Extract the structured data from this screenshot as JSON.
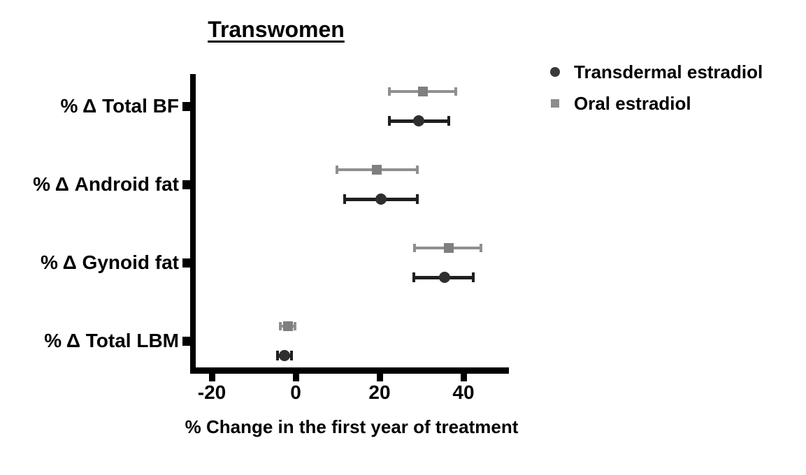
{
  "chart_data": {
    "type": "scatter",
    "subtype": "forest-plot-horizontal-error-bars",
    "title": "Transwomen",
    "xlabel": "% Change in the first year of treatment",
    "categories": [
      "% Δ Total BF",
      "% Δ Android fat",
      "% Δ Gynoid fat",
      "% Δ Total LBM"
    ],
    "x_ticks": [
      -20,
      0,
      20,
      40
    ],
    "xlim": [
      -25,
      51
    ],
    "grid": false,
    "legend_position": "upper-right-outside",
    "series": [
      {
        "name": "Transdermal estradiol",
        "marker": "circle",
        "color": "#2e2e2e",
        "bar_color": "#1f1f1f",
        "row": "bottom",
        "values": [
          29.3,
          20.3,
          35.5,
          -2.7
        ],
        "ci_low": [
          22.3,
          11.7,
          28.2,
          -4.3
        ],
        "ci_high": [
          36.5,
          29.0,
          42.3,
          -1.0
        ]
      },
      {
        "name": "Oral estradiol",
        "marker": "square",
        "color": "#7f7f7f",
        "bar_color": "#8f8f8f",
        "row": "top",
        "values": [
          30.3,
          19.3,
          36.5,
          -1.9
        ],
        "ci_low": [
          22.3,
          9.8,
          28.3,
          -3.7
        ],
        "ci_high": [
          38.2,
          29.0,
          44.2,
          -0.2
        ]
      }
    ]
  },
  "legend": {
    "items": [
      {
        "label": "Transdermal estradiol",
        "marker": "circle",
        "color": "#3a3a3a"
      },
      {
        "label": "Oral estradiol",
        "marker": "square",
        "color": "#8c8c8c"
      }
    ]
  },
  "colors": {
    "axis": "#000000",
    "text": "#000000",
    "background": "#ffffff"
  }
}
